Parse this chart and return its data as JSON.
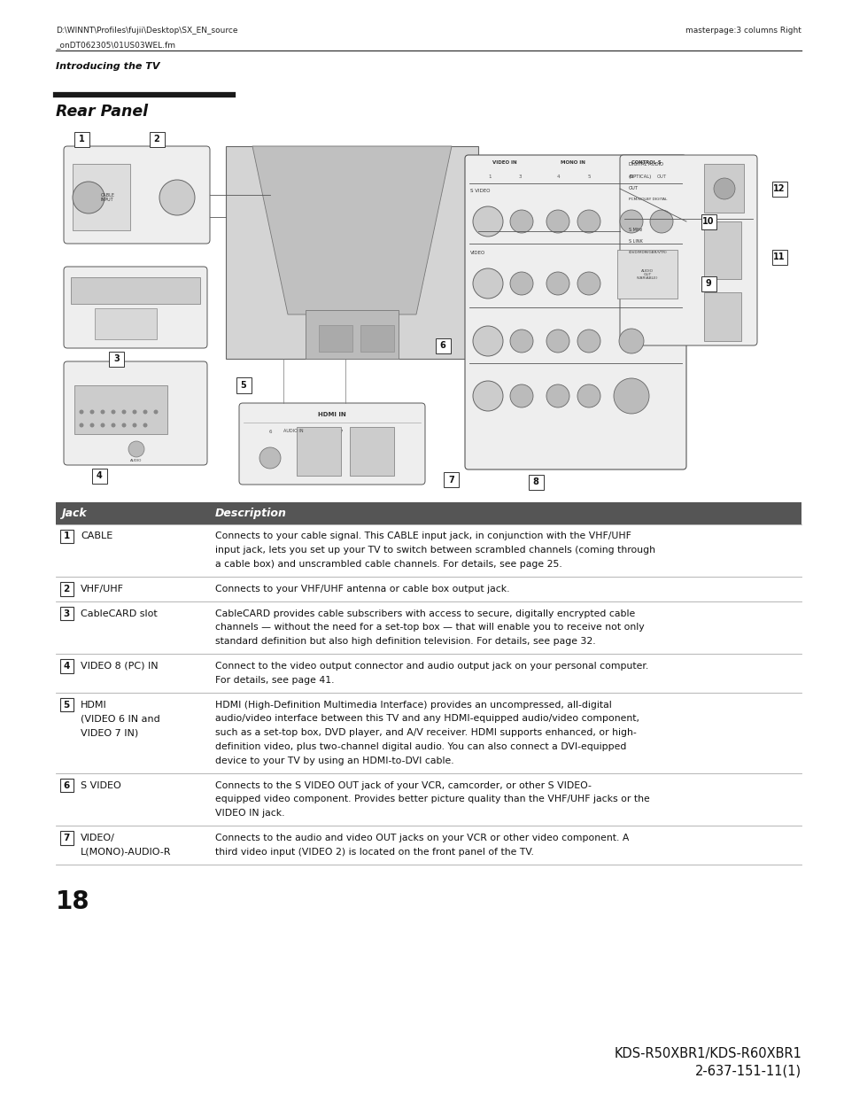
{
  "bg_color": "#ffffff",
  "page_width": 9.54,
  "page_height": 12.35,
  "header_left_line1": "D:\\WINNT\\Profiles\\fujii\\Desktop\\SX_EN_source",
  "header_left_line2": "_onDT062305\\01US03WEL.fm",
  "header_right": "masterpage:3 columns Right",
  "section_label": "Introducing the TV",
  "title": "Rear Panel",
  "table_header_bg": "#555555",
  "table_header_text_color": "#ffffff",
  "table_col1_header": "Jack",
  "table_col2_header": "Description",
  "page_number": "18",
  "footer_right_line1": "KDS-R50XBR1/KDS-R60XBR1",
  "footer_right_line2": "2-637-151-11(1)",
  "rows": [
    {
      "num": "1",
      "jack": "CABLE",
      "jack_lines": 1,
      "desc": "Connects to your cable signal. This CABLE input jack, in conjunction with the VHF/UHF\ninput jack, lets you set up your TV to switch between scrambled channels (coming through\na cable box) and unscrambled cable channels. For details, see page 25.",
      "desc_lines": 3
    },
    {
      "num": "2",
      "jack": "VHF/UHF",
      "jack_lines": 1,
      "desc": "Connects to your VHF/UHF antenna or cable box output jack.",
      "desc_lines": 1
    },
    {
      "num": "3",
      "jack": "CableCARD slot",
      "jack_lines": 1,
      "desc": "CableCARD provides cable subscribers with access to secure, digitally encrypted cable\nchannels — without the need for a set-top box — that will enable you to receive not only\nstandard definition but also high definition television. For details, see page 32.",
      "desc_lines": 3
    },
    {
      "num": "4",
      "jack": "VIDEO 8 (PC) IN",
      "jack_lines": 1,
      "desc": "Connect to the video output connector and audio output jack on your personal computer.\nFor details, see page 41.",
      "desc_lines": 2
    },
    {
      "num": "5",
      "jack": "HDMI\n(VIDEO 6 IN and\nVIDEO 7 IN)",
      "jack_lines": 3,
      "desc": "HDMI (High-Definition Multimedia Interface) provides an uncompressed, all-digital\naudio/video interface between this TV and any HDMI-equipped audio/video component,\nsuch as a set-top box, DVD player, and A/V receiver. HDMI supports enhanced, or high-\ndefinition video, plus two-channel digital audio. You can also connect a DVI-equipped\ndevice to your TV by using an HDMI-to-DVI cable.",
      "desc_lines": 5
    },
    {
      "num": "6",
      "jack": "S VIDEO",
      "jack_lines": 1,
      "desc": "Connects to the S VIDEO OUT jack of your VCR, camcorder, or other S VIDEO-\nequipped video component. Provides better picture quality than the VHF/UHF jacks or the\nVIDEO IN jack.",
      "desc_lines": 3
    },
    {
      "num": "7",
      "jack": "VIDEO/\nL(MONO)-AUDIO-R",
      "jack_lines": 2,
      "desc": "Connects to the audio and video OUT jacks on your VCR or other video component. A\nthird video input (VIDEO 2) is located on the front panel of the TV.",
      "desc_lines": 2
    }
  ]
}
